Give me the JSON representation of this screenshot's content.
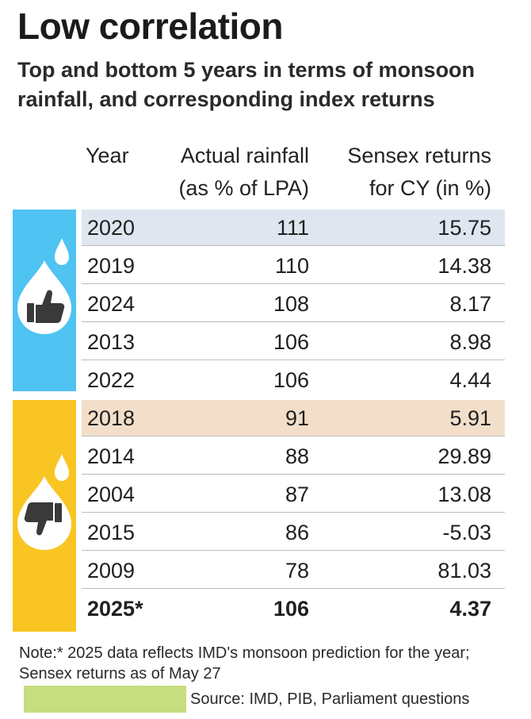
{
  "header": {
    "title": "Low correlation",
    "subtitle": "Top and bottom 5 years in terms of monsoon rainfall, and corresponding index returns"
  },
  "colors": {
    "top_band": "#4fc3f2",
    "bottom_band": "#f9c523",
    "highlight_top": "#dfe6f0",
    "highlight_bottom": "#f3dfc9",
    "icon_dark": "#3a3a3a"
  },
  "icons": {
    "top": "thumbs-up-drop-icon",
    "bottom": "thumbs-down-drop-icon"
  },
  "chart_data": {
    "type": "table",
    "columns": [
      "Year",
      "Actual rainfall (as % of LPA)",
      "Sensex returns for CY (in %)"
    ],
    "column_lines": [
      [
        "Year"
      ],
      [
        "Actual rainfall",
        "(as % of LPA)"
      ],
      [
        "Sensex returns",
        "for CY (in %)"
      ]
    ],
    "groups": [
      {
        "icon": "thumbs-up-drop-icon",
        "rows": [
          {
            "year": "2020",
            "rainfall": "111",
            "sensex": "15.75",
            "highlight": true
          },
          {
            "year": "2019",
            "rainfall": "110",
            "sensex": "14.38"
          },
          {
            "year": "2024",
            "rainfall": "108",
            "sensex": "8.17"
          },
          {
            "year": "2013",
            "rainfall": "106",
            "sensex": "8.98"
          },
          {
            "year": "2022",
            "rainfall": "106",
            "sensex": "4.44"
          }
        ]
      },
      {
        "icon": "thumbs-down-drop-icon",
        "rows": [
          {
            "year": "2018",
            "rainfall": "91",
            "sensex": "5.91",
            "highlight": true
          },
          {
            "year": "2014",
            "rainfall": "88",
            "sensex": "29.89"
          },
          {
            "year": "2004",
            "rainfall": "87",
            "sensex": "13.08"
          },
          {
            "year": "2015",
            "rainfall": "86",
            "sensex": "-5.03"
          },
          {
            "year": "2009",
            "rainfall": "78",
            "sensex": "81.03"
          }
        ]
      }
    ],
    "total_row": {
      "year": "2025*",
      "rainfall": "106",
      "sensex": "4.37"
    }
  },
  "footer": {
    "note": "Note:* 2025 data reflects IMD's monsoon prediction for the year; Sensex returns as of May 27",
    "source": "Source: IMD, PIB, Parliament questions"
  }
}
